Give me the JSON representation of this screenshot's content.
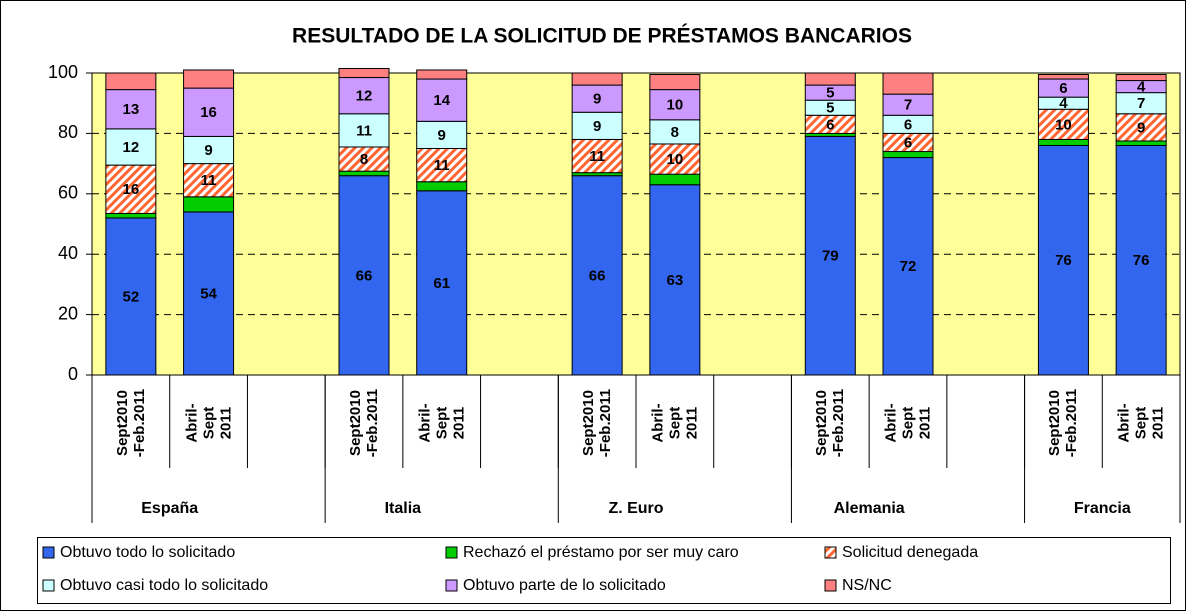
{
  "chart_data": {
    "type": "stacked-bar",
    "title": "RESULTADO DE LA SOLICITUD DE PRÉSTAMOS BANCARIOS",
    "categories": [
      "Sept2010\n-Feb.2011",
      "Abril-\nSept\n2011",
      null,
      "Sept2010\n-Feb.2011",
      "Abril-\nSept\n2011",
      null,
      "Sept2010\n-Feb.2011",
      "Abril-\nSept\n2011",
      null,
      "Sept2010\n-Feb.2011",
      "Abril-\nSept\n2011",
      null,
      "Sept2010\n-Feb.2011",
      "Abril-\nSept\n2011"
    ],
    "groups": [
      "España",
      "Italia",
      "Z. Euro",
      "Alemania",
      "Francia"
    ],
    "series": [
      {
        "name": "Obtuvo todo lo solicitado",
        "color": "#3366ee",
        "data_labels": true,
        "values": [
          52,
          54,
          null,
          66,
          61,
          null,
          66,
          63,
          null,
          79,
          72,
          null,
          76,
          76
        ]
      },
      {
        "name": "Rechazó el préstamo por ser muy caro",
        "color": "#00cc00",
        "data_labels": false,
        "values": [
          1.5,
          5,
          null,
          1.5,
          3,
          null,
          1,
          3.5,
          null,
          1,
          2,
          null,
          2,
          1.5
        ]
      },
      {
        "name": "Solicitud denegada",
        "color": "#ff6633",
        "pattern": "diagonal-hatch",
        "data_labels": true,
        "values": [
          16,
          11,
          null,
          8,
          11,
          null,
          11,
          10,
          null,
          6,
          6,
          null,
          10,
          9
        ]
      },
      {
        "name": "Obtuvo casi todo lo solicitado",
        "color": "#ccffff",
        "data_labels": true,
        "values": [
          12,
          9,
          null,
          11,
          9,
          null,
          9,
          8,
          null,
          5,
          6,
          null,
          4,
          7
        ]
      },
      {
        "name": "Obtuvo parte de lo solicitado",
        "color": "#cc99ff",
        "data_labels": true,
        "values": [
          13,
          16,
          null,
          12,
          14,
          null,
          9,
          10,
          null,
          5,
          7,
          null,
          6,
          4
        ]
      },
      {
        "name": "NS/NC",
        "color": "#ff8080",
        "data_labels": false,
        "values": [
          5.5,
          6,
          null,
          3,
          3,
          null,
          4,
          5,
          null,
          4,
          7,
          null,
          1.5,
          2
        ]
      }
    ],
    "ylim": [
      0,
      100
    ],
    "yticks": [
      0,
      20,
      40,
      60,
      80,
      100
    ],
    "grid": true,
    "plot_background": "#ffff99",
    "legend": "bottom"
  }
}
